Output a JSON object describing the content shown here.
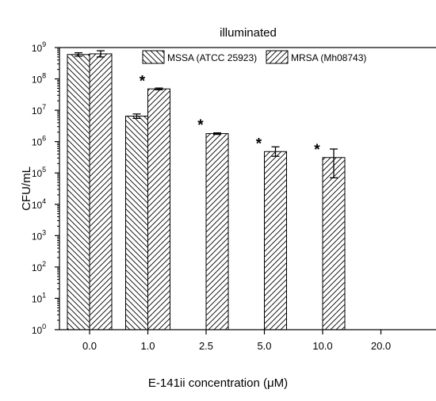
{
  "chart_data": {
    "type": "bar",
    "title": "illuminated",
    "xlabel": "E-141ii concentration (μM)",
    "ylabel": "CFU/mL",
    "yscale": "log",
    "ylim": [
      1,
      1000000000
    ],
    "grid": false,
    "legend_position": "top-right",
    "categories": [
      "0.0",
      "1.0",
      "2.5",
      "5.0",
      "10.0",
      "20.0"
    ],
    "y_ticks": [
      {
        "value": 1,
        "base": "10",
        "exp": "0"
      },
      {
        "value": 10,
        "base": "10",
        "exp": "1"
      },
      {
        "value": 100,
        "base": "10",
        "exp": "2"
      },
      {
        "value": 1000,
        "base": "10",
        "exp": "3"
      },
      {
        "value": 10000,
        "base": "10",
        "exp": "4"
      },
      {
        "value": 100000,
        "base": "10",
        "exp": "5"
      },
      {
        "value": 1000000,
        "base": "10",
        "exp": "6"
      },
      {
        "value": 10000000,
        "base": "10",
        "exp": "7"
      },
      {
        "value": 100000000,
        "base": "10",
        "exp": "8"
      },
      {
        "value": 1000000000,
        "base": "10",
        "exp": "9"
      }
    ],
    "series": [
      {
        "name": "MSSA (ATCC 25923)",
        "pattern": "backslash-hatch",
        "values": [
          600000000,
          6500000,
          null,
          null,
          null,
          null
        ],
        "err_low": [
          530000000,
          5500000,
          null,
          null,
          null,
          null
        ],
        "err_high": [
          680000000,
          7600000,
          null,
          null,
          null,
          null
        ]
      },
      {
        "name": "MRSA (Mh08743)",
        "pattern": "forward-hatch",
        "values": [
          630000000,
          48000000,
          1800000,
          480000,
          310000,
          null
        ],
        "err_low": [
          500000000,
          45000000,
          1700000,
          340000,
          70000,
          null
        ],
        "err_high": [
          790000000,
          51000000,
          1900000,
          680000,
          580000,
          null
        ]
      }
    ],
    "annotations": [
      {
        "text": "*",
        "category": "1.0",
        "value": 100000000
      },
      {
        "text": "*",
        "category": "2.5",
        "value": 4000000
      },
      {
        "text": "*",
        "category": "5.0",
        "value": 1000000
      },
      {
        "text": "*",
        "category": "10.0",
        "value": 650000
      }
    ],
    "colors": {
      "axis": "#000000",
      "bar_fill": "#ffffff",
      "hatch": "#000000"
    }
  }
}
